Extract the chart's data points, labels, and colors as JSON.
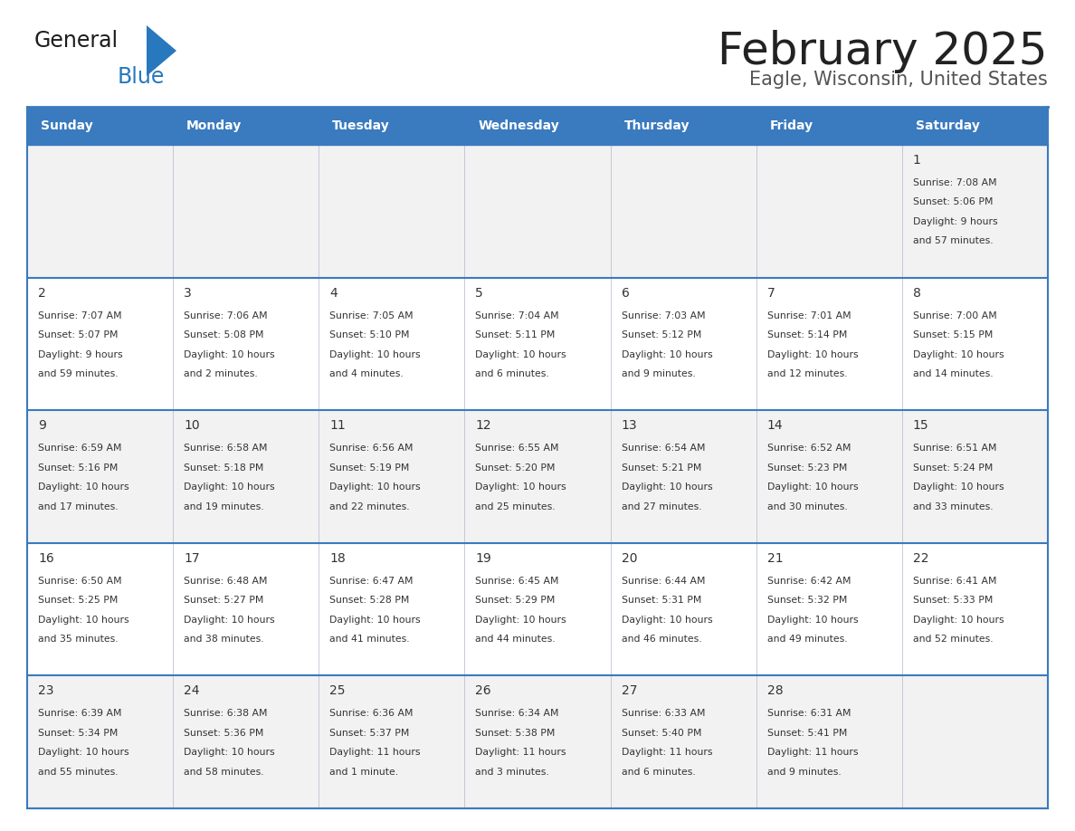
{
  "title": "February 2025",
  "subtitle": "Eagle, Wisconsin, United States",
  "days_of_week": [
    "Sunday",
    "Monday",
    "Tuesday",
    "Wednesday",
    "Thursday",
    "Friday",
    "Saturday"
  ],
  "header_bg": "#3a7abf",
  "header_text_color": "#ffffff",
  "cell_bg_odd": "#f2f2f2",
  "cell_bg_even": "#ffffff",
  "border_color": "#3a7abf",
  "text_color": "#333333",
  "title_color": "#222222",
  "subtitle_color": "#555555",
  "logo_black": "#1a1a1a",
  "logo_blue": "#2878be",
  "logo_triangle": "#2878be",
  "weeks": [
    [
      {
        "day": null,
        "sunrise": null,
        "sunset": null,
        "daylight": null
      },
      {
        "day": null,
        "sunrise": null,
        "sunset": null,
        "daylight": null
      },
      {
        "day": null,
        "sunrise": null,
        "sunset": null,
        "daylight": null
      },
      {
        "day": null,
        "sunrise": null,
        "sunset": null,
        "daylight": null
      },
      {
        "day": null,
        "sunrise": null,
        "sunset": null,
        "daylight": null
      },
      {
        "day": null,
        "sunrise": null,
        "sunset": null,
        "daylight": null
      },
      {
        "day": 1,
        "sunrise": "7:08 AM",
        "sunset": "5:06 PM",
        "daylight": "9 hours\nand 57 minutes."
      }
    ],
    [
      {
        "day": 2,
        "sunrise": "7:07 AM",
        "sunset": "5:07 PM",
        "daylight": "9 hours\nand 59 minutes."
      },
      {
        "day": 3,
        "sunrise": "7:06 AM",
        "sunset": "5:08 PM",
        "daylight": "10 hours\nand 2 minutes."
      },
      {
        "day": 4,
        "sunrise": "7:05 AM",
        "sunset": "5:10 PM",
        "daylight": "10 hours\nand 4 minutes."
      },
      {
        "day": 5,
        "sunrise": "7:04 AM",
        "sunset": "5:11 PM",
        "daylight": "10 hours\nand 6 minutes."
      },
      {
        "day": 6,
        "sunrise": "7:03 AM",
        "sunset": "5:12 PM",
        "daylight": "10 hours\nand 9 minutes."
      },
      {
        "day": 7,
        "sunrise": "7:01 AM",
        "sunset": "5:14 PM",
        "daylight": "10 hours\nand 12 minutes."
      },
      {
        "day": 8,
        "sunrise": "7:00 AM",
        "sunset": "5:15 PM",
        "daylight": "10 hours\nand 14 minutes."
      }
    ],
    [
      {
        "day": 9,
        "sunrise": "6:59 AM",
        "sunset": "5:16 PM",
        "daylight": "10 hours\nand 17 minutes."
      },
      {
        "day": 10,
        "sunrise": "6:58 AM",
        "sunset": "5:18 PM",
        "daylight": "10 hours\nand 19 minutes."
      },
      {
        "day": 11,
        "sunrise": "6:56 AM",
        "sunset": "5:19 PM",
        "daylight": "10 hours\nand 22 minutes."
      },
      {
        "day": 12,
        "sunrise": "6:55 AM",
        "sunset": "5:20 PM",
        "daylight": "10 hours\nand 25 minutes."
      },
      {
        "day": 13,
        "sunrise": "6:54 AM",
        "sunset": "5:21 PM",
        "daylight": "10 hours\nand 27 minutes."
      },
      {
        "day": 14,
        "sunrise": "6:52 AM",
        "sunset": "5:23 PM",
        "daylight": "10 hours\nand 30 minutes."
      },
      {
        "day": 15,
        "sunrise": "6:51 AM",
        "sunset": "5:24 PM",
        "daylight": "10 hours\nand 33 minutes."
      }
    ],
    [
      {
        "day": 16,
        "sunrise": "6:50 AM",
        "sunset": "5:25 PM",
        "daylight": "10 hours\nand 35 minutes."
      },
      {
        "day": 17,
        "sunrise": "6:48 AM",
        "sunset": "5:27 PM",
        "daylight": "10 hours\nand 38 minutes."
      },
      {
        "day": 18,
        "sunrise": "6:47 AM",
        "sunset": "5:28 PM",
        "daylight": "10 hours\nand 41 minutes."
      },
      {
        "day": 19,
        "sunrise": "6:45 AM",
        "sunset": "5:29 PM",
        "daylight": "10 hours\nand 44 minutes."
      },
      {
        "day": 20,
        "sunrise": "6:44 AM",
        "sunset": "5:31 PM",
        "daylight": "10 hours\nand 46 minutes."
      },
      {
        "day": 21,
        "sunrise": "6:42 AM",
        "sunset": "5:32 PM",
        "daylight": "10 hours\nand 49 minutes."
      },
      {
        "day": 22,
        "sunrise": "6:41 AM",
        "sunset": "5:33 PM",
        "daylight": "10 hours\nand 52 minutes."
      }
    ],
    [
      {
        "day": 23,
        "sunrise": "6:39 AM",
        "sunset": "5:34 PM",
        "daylight": "10 hours\nand 55 minutes."
      },
      {
        "day": 24,
        "sunrise": "6:38 AM",
        "sunset": "5:36 PM",
        "daylight": "10 hours\nand 58 minutes."
      },
      {
        "day": 25,
        "sunrise": "6:36 AM",
        "sunset": "5:37 PM",
        "daylight": "11 hours\nand 1 minute."
      },
      {
        "day": 26,
        "sunrise": "6:34 AM",
        "sunset": "5:38 PM",
        "daylight": "11 hours\nand 3 minutes."
      },
      {
        "day": 27,
        "sunrise": "6:33 AM",
        "sunset": "5:40 PM",
        "daylight": "11 hours\nand 6 minutes."
      },
      {
        "day": 28,
        "sunrise": "6:31 AM",
        "sunset": "5:41 PM",
        "daylight": "11 hours\nand 9 minutes."
      },
      {
        "day": null,
        "sunrise": null,
        "sunset": null,
        "daylight": null
      }
    ]
  ]
}
